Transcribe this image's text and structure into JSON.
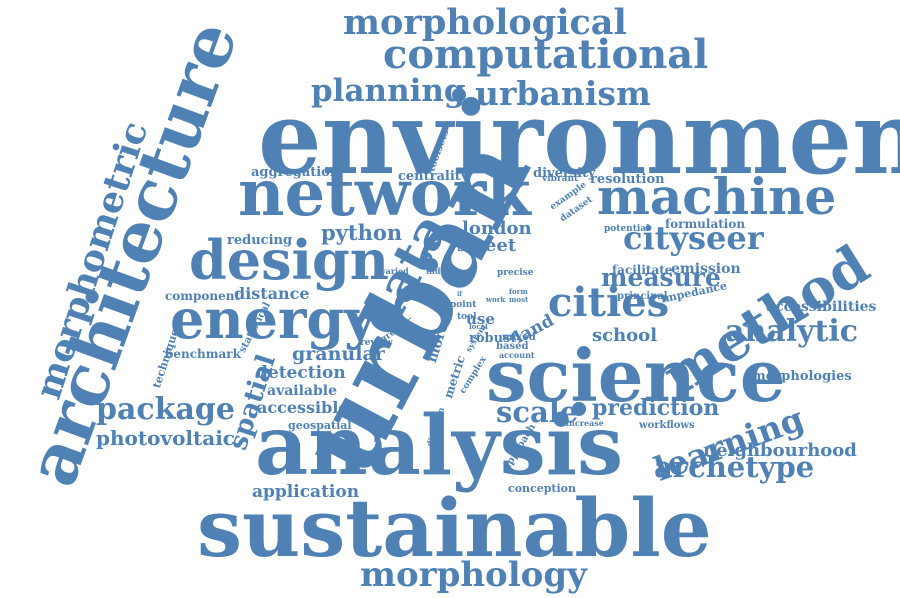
{
  "style": {
    "word_color": "#4f81b4",
    "background": "#ffffff"
  },
  "words": [
    "environment",
    "urban",
    "analysis",
    "sustainable",
    "science",
    "architecture",
    "network",
    "design",
    "energy",
    "data",
    "method",
    "machine",
    "computational",
    "morphological",
    "morphometric",
    "morphology",
    "cities",
    "urbanism",
    "planning",
    "learning",
    "spatial",
    "cityseer",
    "analytic",
    "archetype",
    "package",
    "scale",
    "prediction",
    "measure",
    "street",
    "london",
    "python",
    "photovoltaic",
    "neighbourhood",
    "detection",
    "granular",
    "school",
    "land",
    "application",
    "accessible",
    "available",
    "distance",
    "component",
    "benchmark",
    "technique",
    "statistical",
    "reducing",
    "aggregation",
    "centrality",
    "diversity",
    "resolution",
    "toolsets",
    "example",
    "dataset",
    "vibrant",
    "formulation",
    "potential",
    "emission",
    "facilitate",
    "impedance",
    "principal",
    "accessibilities",
    "morphologies",
    "workflows",
    "increase",
    "approach",
    "conception",
    "direction",
    "metric",
    "complex",
    "more",
    "review",
    "greater",
    "robust",
    "based",
    "mixed",
    "account",
    "use",
    "tool",
    "point",
    "dense",
    "varied",
    "indice",
    "precise",
    "form",
    "most",
    "work",
    "local",
    "system",
    "geospatial",
    "if"
  ]
}
